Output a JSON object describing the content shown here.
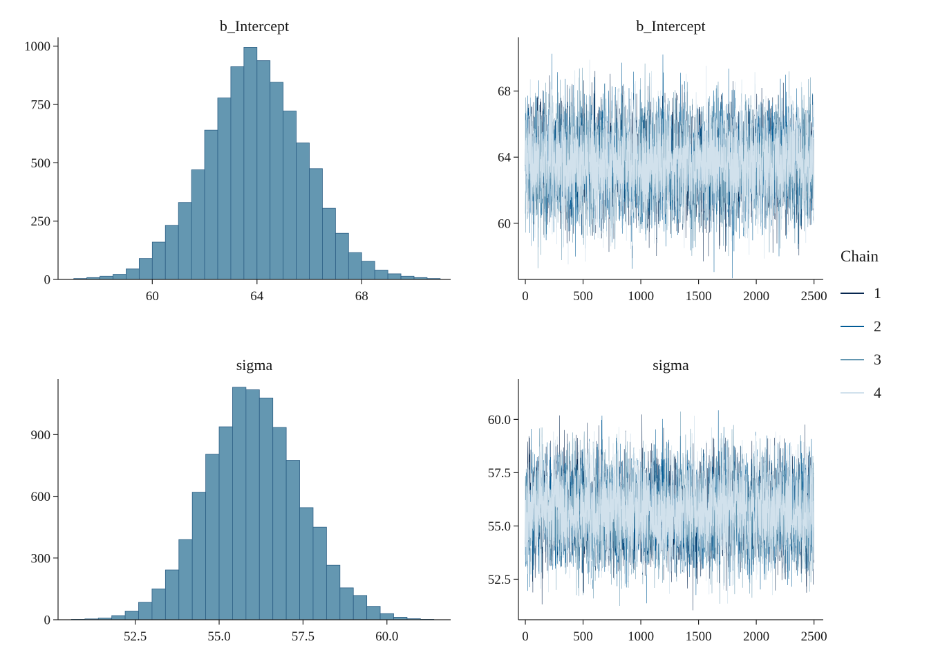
{
  "colors": {
    "background": "#ffffff",
    "axis": "#1f1f1f",
    "text": "#1a1a1a",
    "hist_fill": "#6497b1",
    "hist_stroke": "#2c5f85"
  },
  "legend": {
    "title": "Chain",
    "items": [
      {
        "label": "1",
        "color": "#06264f"
      },
      {
        "label": "2",
        "color": "#005b96"
      },
      {
        "label": "3",
        "color": "#6497b1"
      },
      {
        "label": "4",
        "color": "#d1e1ec"
      }
    ]
  },
  "chart_data": [
    {
      "id": "hist-b-intercept",
      "type": "bar",
      "variant": "histogram",
      "title": "b_Intercept",
      "xlabel": "",
      "ylabel": "",
      "bin_start": 57.0,
      "bin_width": 0.5,
      "counts": [
        4,
        8,
        14,
        22,
        45,
        90,
        160,
        232,
        330,
        470,
        640,
        778,
        912,
        995,
        938,
        845,
        722,
        585,
        475,
        305,
        198,
        115,
        78,
        40,
        24,
        14,
        8,
        4
      ],
      "xlim": [
        56.4,
        71.4
      ],
      "ylim": [
        0,
        1020
      ],
      "x_tick_values": [
        60,
        64,
        68
      ],
      "x_tick_labels": [
        "60",
        "64",
        "68"
      ],
      "y_tick_values": [
        0,
        250,
        500,
        750,
        1000
      ],
      "y_tick_labels": [
        "0",
        "250",
        "500",
        "750",
        "1000"
      ]
    },
    {
      "id": "trace-b-intercept",
      "type": "line",
      "variant": "trace",
      "title": "b_Intercept",
      "xlabel": "",
      "ylabel": "",
      "n_iterations": 2500,
      "n_chains": 4,
      "mean": 63.6,
      "sd": 1.85,
      "seed": 12345,
      "xlim": [
        -60,
        2580
      ],
      "ylim": [
        56.6,
        71.0
      ],
      "x_tick_values": [
        0,
        500,
        1000,
        1500,
        2000,
        2500
      ],
      "x_tick_labels": [
        "0",
        "500",
        "1000",
        "1500",
        "2000",
        "2500"
      ],
      "y_tick_values": [
        60,
        64,
        68
      ],
      "y_tick_labels": [
        "60",
        "64",
        "68"
      ]
    },
    {
      "id": "hist-sigma",
      "type": "bar",
      "variant": "histogram",
      "title": "sigma",
      "xlabel": "",
      "ylabel": "",
      "bin_start": 50.6,
      "bin_width": 0.4,
      "counts": [
        2,
        4,
        8,
        20,
        42,
        85,
        150,
        242,
        390,
        620,
        805,
        938,
        1130,
        1118,
        1078,
        935,
        775,
        545,
        450,
        265,
        155,
        118,
        65,
        30,
        12,
        5,
        2
      ],
      "xlim": [
        50.2,
        61.9
      ],
      "ylim": [
        0,
        1150
      ],
      "x_tick_values": [
        52.5,
        55.0,
        57.5,
        60.0
      ],
      "x_tick_labels": [
        "52.5",
        "55.0",
        "57.5",
        "60.0"
      ],
      "y_tick_values": [
        0,
        300,
        600,
        900
      ],
      "y_tick_labels": [
        "0",
        "300",
        "600",
        "900"
      ]
    },
    {
      "id": "trace-sigma",
      "type": "line",
      "variant": "trace",
      "title": "sigma",
      "xlabel": "",
      "ylabel": "",
      "n_iterations": 2500,
      "n_chains": 4,
      "mean": 55.7,
      "sd": 1.35,
      "seed": 67890,
      "xlim": [
        -60,
        2580
      ],
      "ylim": [
        50.6,
        61.7
      ],
      "x_tick_values": [
        0,
        500,
        1000,
        1500,
        2000,
        2500
      ],
      "x_tick_labels": [
        "0",
        "500",
        "1000",
        "1500",
        "2000",
        "2500"
      ],
      "y_tick_values": [
        52.5,
        55.0,
        57.5,
        60.0
      ],
      "y_tick_labels": [
        "52.5",
        "55.0",
        "57.5",
        "60.0"
      ]
    }
  ]
}
